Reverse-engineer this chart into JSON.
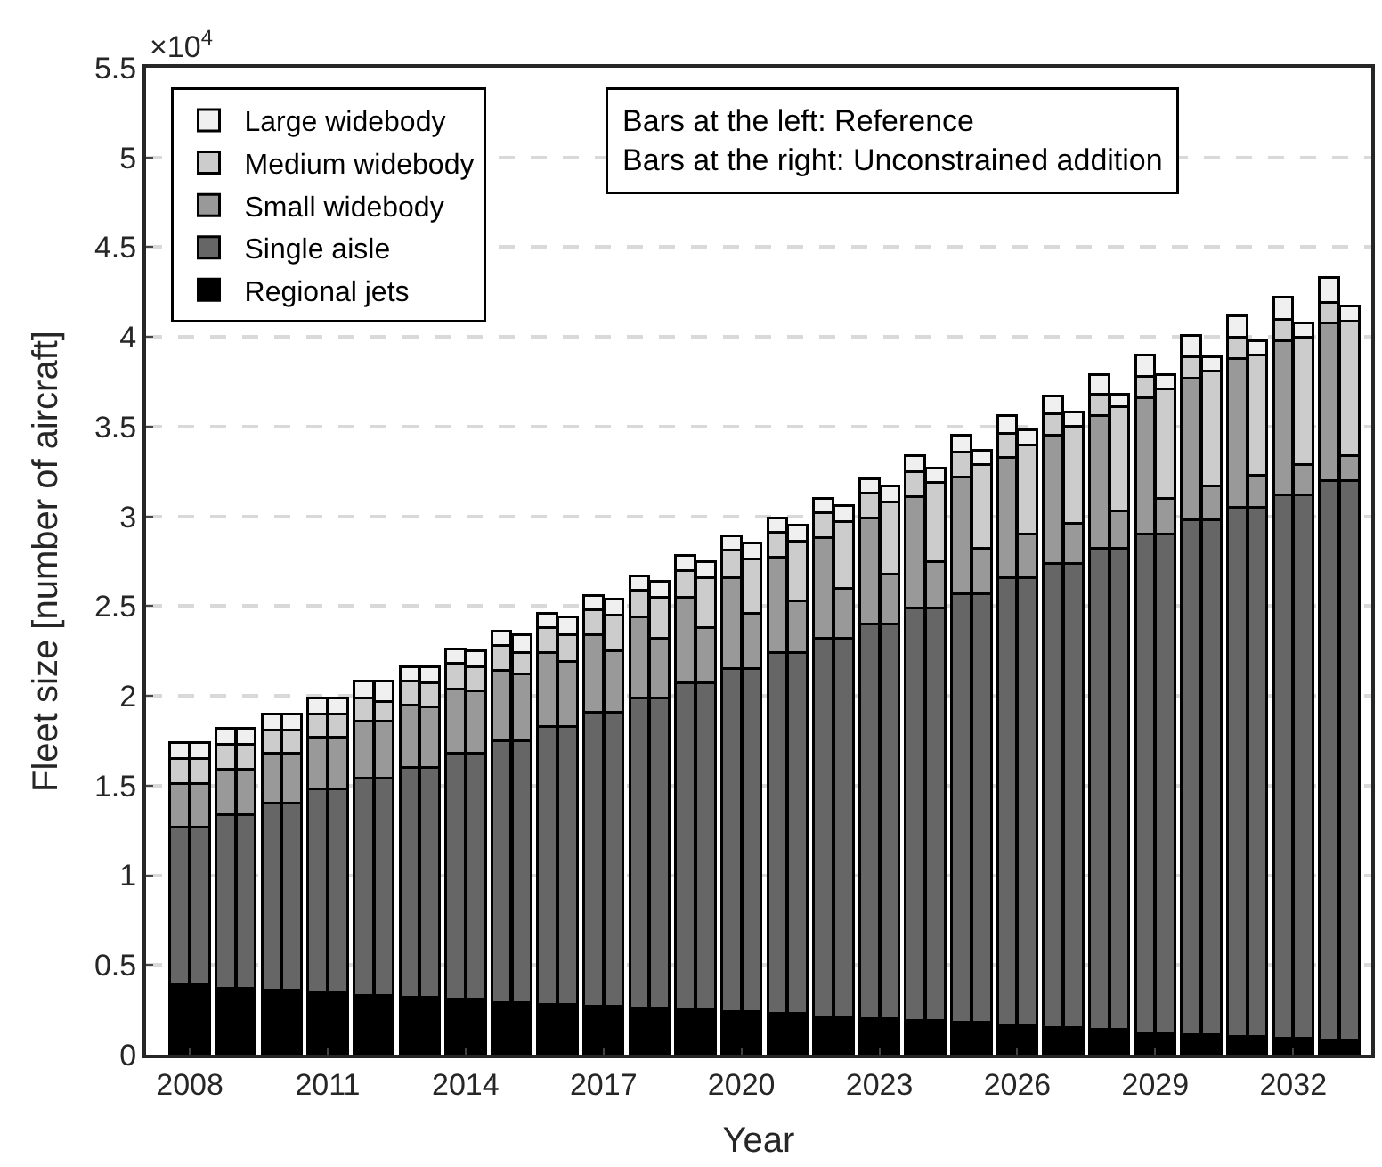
{
  "chart_data": {
    "type": "bar",
    "stacked": true,
    "xlabel": "Year",
    "ylabel": "Fleet size [number of aircraft]",
    "annotations": [
      "×10$^{4}$",
      "Bars at the left: Reference",
      "Bars at the right: Unconstrained addition"
    ],
    "x": [
      2007.78,
      2008.22,
      2008.78,
      2009.22,
      2009.78,
      2010.22,
      2010.78,
      2011.22,
      2011.78,
      2012.22,
      2012.78,
      2013.22,
      2013.78,
      2014.22,
      2014.78,
      2015.22,
      2015.78,
      2016.22,
      2016.78,
      2017.22,
      2017.78,
      2018.22,
      2018.78,
      2019.22,
      2019.78,
      2020.22,
      2020.78,
      2021.22,
      2021.78,
      2022.22,
      2022.78,
      2023.22,
      2023.78,
      2024.22,
      2024.78,
      2025.22,
      2025.78,
      2026.22,
      2026.78,
      2027.22,
      2027.78,
      2028.22,
      2028.78,
      2029.22,
      2029.78,
      2030.22,
      2030.78,
      2031.22,
      2031.78,
      2032.22,
      2032.78,
      2033.22
    ],
    "series": [
      {
        "name": "Regional jets",
        "color": "#000000",
        "values": [
          0.39,
          0.39,
          0.37,
          0.37,
          0.36,
          0.36,
          0.35,
          0.35,
          0.33,
          0.33,
          0.32,
          0.32,
          0.31,
          0.31,
          0.29,
          0.29,
          0.28,
          0.28,
          0.27,
          0.27,
          0.26,
          0.26,
          0.25,
          0.25,
          0.24,
          0.24,
          0.23,
          0.23,
          0.21,
          0.21,
          0.2,
          0.2,
          0.19,
          0.19,
          0.18,
          0.18,
          0.16,
          0.16,
          0.15,
          0.15,
          0.14,
          0.14,
          0.12,
          0.12,
          0.11,
          0.11,
          0.1,
          0.1,
          0.09,
          0.09,
          0.08,
          0.08
        ]
      },
      {
        "name": "Single aisle",
        "color": "#666666",
        "values": [
          0.88,
          0.88,
          0.97,
          0.97,
          1.04,
          1.04,
          1.13,
          1.13,
          1.21,
          1.21,
          1.28,
          1.28,
          1.37,
          1.37,
          1.46,
          1.46,
          1.55,
          1.55,
          1.64,
          1.64,
          1.73,
          1.73,
          1.82,
          1.82,
          1.91,
          1.91,
          2.01,
          2.01,
          2.11,
          2.11,
          2.2,
          2.2,
          2.3,
          2.3,
          2.39,
          2.39,
          2.5,
          2.5,
          2.59,
          2.59,
          2.68,
          2.68,
          2.78,
          2.78,
          2.87,
          2.87,
          2.95,
          2.95,
          3.03,
          3.03,
          3.12,
          3.12
        ]
      },
      {
        "name": "Small widebody",
        "color": "#999999",
        "values": [
          0.24,
          0.24,
          0.25,
          0.25,
          0.28,
          0.28,
          0.29,
          0.29,
          0.32,
          0.32,
          0.35,
          0.34,
          0.36,
          0.35,
          0.39,
          0.37,
          0.41,
          0.36,
          0.43,
          0.34,
          0.45,
          0.33,
          0.48,
          0.31,
          0.51,
          0.31,
          0.53,
          0.29,
          0.56,
          0.28,
          0.59,
          0.28,
          0.62,
          0.26,
          0.65,
          0.25,
          0.67,
          0.24,
          0.71,
          0.22,
          0.74,
          0.21,
          0.76,
          0.2,
          0.79,
          0.19,
          0.83,
          0.18,
          0.86,
          0.17,
          0.88,
          0.14
        ]
      },
      {
        "name": "Medium widebody",
        "color": "#cccccc",
        "values": [
          0.14,
          0.14,
          0.14,
          0.14,
          0.13,
          0.13,
          0.13,
          0.13,
          0.13,
          0.11,
          0.13,
          0.13,
          0.14,
          0.13,
          0.14,
          0.12,
          0.14,
          0.15,
          0.14,
          0.2,
          0.15,
          0.23,
          0.15,
          0.28,
          0.15,
          0.3,
          0.14,
          0.33,
          0.14,
          0.37,
          0.14,
          0.4,
          0.14,
          0.44,
          0.14,
          0.47,
          0.13,
          0.5,
          0.12,
          0.54,
          0.12,
          0.58,
          0.12,
          0.61,
          0.12,
          0.64,
          0.12,
          0.67,
          0.12,
          0.71,
          0.11,
          0.75
        ]
      },
      {
        "name": "Large widebody",
        "color": "#f0f0f0",
        "values": [
          0.09,
          0.09,
          0.09,
          0.09,
          0.09,
          0.09,
          0.09,
          0.09,
          0.09,
          0.11,
          0.08,
          0.09,
          0.08,
          0.09,
          0.08,
          0.1,
          0.08,
          0.1,
          0.08,
          0.09,
          0.08,
          0.09,
          0.08,
          0.09,
          0.08,
          0.09,
          0.08,
          0.09,
          0.08,
          0.09,
          0.08,
          0.09,
          0.09,
          0.08,
          0.09,
          0.08,
          0.1,
          0.08,
          0.1,
          0.08,
          0.11,
          0.07,
          0.12,
          0.08,
          0.12,
          0.08,
          0.12,
          0.08,
          0.12,
          0.08,
          0.14,
          0.08
        ]
      }
    ],
    "xlim": [
      2007.05,
      2033.7
    ],
    "xticks": [
      2008,
      2011,
      2014,
      2017,
      2020,
      2023,
      2026,
      2029,
      2032
    ],
    "ylim": [
      0,
      5.5
    ],
    "yticks": [
      0,
      0.5,
      1,
      1.5,
      2,
      2.5,
      3,
      3.5,
      4,
      4.5,
      5,
      5.5
    ],
    "grid": "y",
    "legend": "top left"
  }
}
